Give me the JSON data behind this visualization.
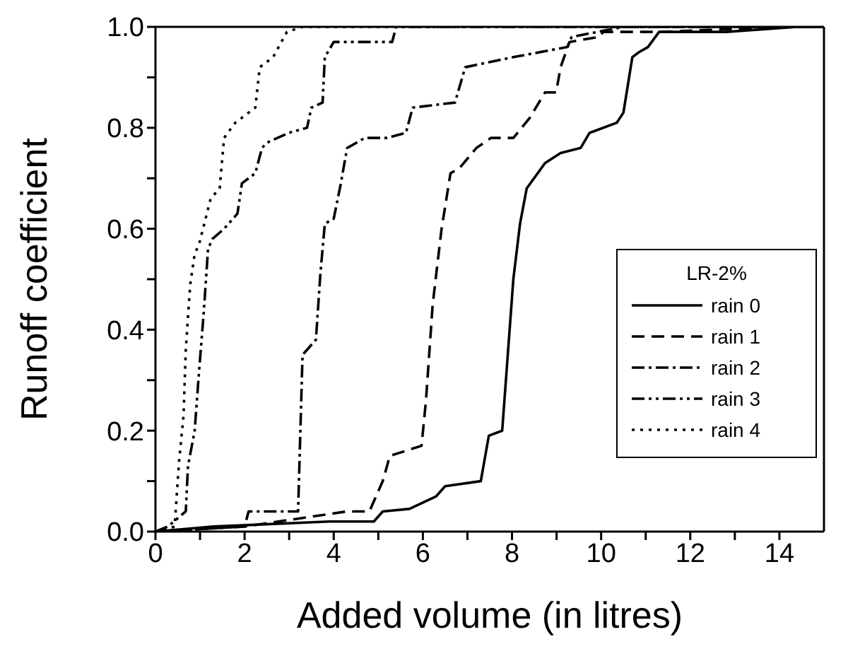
{
  "chart_data": {
    "type": "line",
    "xlabel": "Added volume (in litres)",
    "ylabel": "Runoff coefficient",
    "legend_title": "LR-2%",
    "legend": "bottom right",
    "marker": "none",
    "xlim": [
      0,
      15
    ],
    "xticks": [
      0,
      {
        "value": 1,
        "label": null
      },
      2,
      {
        "value": 3,
        "label": null
      },
      4,
      {
        "value": 5,
        "label": null
      },
      6,
      {
        "value": 7,
        "label": null
      },
      8,
      {
        "value": 9,
        "label": null
      },
      10,
      {
        "value": 11,
        "label": null
      },
      12,
      {
        "value": 13,
        "label": null
      },
      14
    ],
    "ylim": [
      0,
      1
    ],
    "yticks": [
      {
        "value": 0,
        "label": "0.0"
      },
      {
        "value": 0.1,
        "label": null
      },
      {
        "value": 0.2,
        "label": "0.2"
      },
      {
        "value": 0.3,
        "label": null
      },
      {
        "value": 0.4,
        "label": "0.4"
      },
      {
        "value": 0.5,
        "label": null
      },
      {
        "value": 0.6,
        "label": "0.6"
      },
      {
        "value": 0.7,
        "label": null
      },
      {
        "value": 0.8,
        "label": "0.8"
      },
      {
        "value": 0.9,
        "label": null
      },
      {
        "value": 1,
        "label": "1.0"
      }
    ],
    "series": [
      {
        "name": "rain 0",
        "color": "#000000",
        "line_style": "solid",
        "x": [
          0,
          1.3,
          3.9,
          4.9,
          5.1,
          5.7,
          6.3,
          6.5,
          7.3,
          7.48,
          7.78,
          7.88,
          8.03,
          8.18,
          8.33,
          8.74,
          9.09,
          9.54,
          9.74,
          10.35,
          10.5,
          10.7,
          10.85,
          11.05,
          11.3,
          12.8,
          14.4,
          15
        ],
        "values": [
          0,
          0.01,
          0.02,
          0.02,
          0.04,
          0.045,
          0.07,
          0.09,
          0.1,
          0.19,
          0.2,
          0.32,
          0.5,
          0.61,
          0.68,
          0.73,
          0.75,
          0.76,
          0.79,
          0.81,
          0.83,
          0.94,
          0.95,
          0.96,
          0.99,
          0.99,
          1,
          1
        ]
      },
      {
        "name": "rain 1",
        "color": "#000000",
        "line_style": "dashed",
        "x": [
          0,
          2,
          4.3,
          4.8,
          5.1,
          5.26,
          5.97,
          6.07,
          6.22,
          6.42,
          6.62,
          6.82,
          7.2,
          7.53,
          8.03,
          8.4,
          8.74,
          8.99,
          9.09,
          9.29,
          9.95,
          10.05,
          11.36,
          14,
          15
        ],
        "values": [
          0,
          0.01,
          0.04,
          0.04,
          0.1,
          0.15,
          0.17,
          0.26,
          0.45,
          0.6,
          0.71,
          0.72,
          0.76,
          0.78,
          0.78,
          0.82,
          0.87,
          0.87,
          0.92,
          0.97,
          0.98,
          0.99,
          0.99,
          1,
          1
        ]
      },
      {
        "name": "rain 2",
        "color": "#000000",
        "line_style": "dashdot",
        "x": [
          0,
          2.0,
          2.09,
          3.2,
          3.3,
          3.6,
          3.7,
          3.8,
          4.0,
          4.16,
          4.3,
          4.7,
          5.2,
          5.62,
          5.77,
          6.72,
          6.95,
          8.03,
          9.24,
          9.34,
          10.5,
          15
        ],
        "values": [
          0,
          0.01,
          0.04,
          0.04,
          0.35,
          0.38,
          0.51,
          0.61,
          0.62,
          0.69,
          0.76,
          0.78,
          0.78,
          0.79,
          0.84,
          0.85,
          0.92,
          0.94,
          0.96,
          0.98,
          1,
          1
        ]
      },
      {
        "name": "rain 3",
        "color": "#000000",
        "line_style": "dashdotdot",
        "x": [
          0,
          0.28,
          0.68,
          0.73,
          0.88,
          0.98,
          1.08,
          1.18,
          1.28,
          1.54,
          1.84,
          1.94,
          2.24,
          2.39,
          2.49,
          2.99,
          3.4,
          3.5,
          3.75,
          3.8,
          4.0,
          5.31,
          5.4,
          15
        ],
        "values": [
          0,
          0.01,
          0.04,
          0.13,
          0.2,
          0.32,
          0.43,
          0.56,
          0.58,
          0.6,
          0.63,
          0.69,
          0.71,
          0.76,
          0.77,
          0.79,
          0.8,
          0.84,
          0.85,
          0.94,
          0.97,
          0.97,
          1,
          1
        ]
      },
      {
        "name": "rain 4",
        "color": "#000000",
        "line_style": "dotted",
        "x": [
          0,
          0.08,
          0.43,
          0.53,
          0.63,
          0.68,
          0.78,
          0.88,
          0.98,
          1.24,
          1.44,
          1.54,
          1.79,
          2.24,
          2.34,
          2.64,
          2.95,
          3.3,
          15
        ],
        "values": [
          0,
          0,
          0.01,
          0.14,
          0.23,
          0.36,
          0.49,
          0.55,
          0.57,
          0.66,
          0.68,
          0.78,
          0.81,
          0.84,
          0.92,
          0.94,
          0.99,
          1,
          1
        ]
      }
    ]
  }
}
